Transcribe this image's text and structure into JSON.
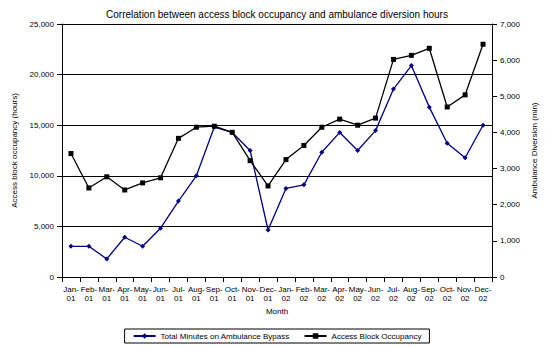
{
  "chart_data": {
    "type": "line",
    "title": "Correlation between access block occupancy and ambulance diversion hours",
    "x_label": "Month",
    "y_label": "Access block occupancy (hours)",
    "y2_label": "Ambulance Diversion (min)",
    "categories": [
      "Jan-01",
      "Feb-01",
      "Mar-01",
      "Apr-01",
      "May-01",
      "Jun-01",
      "Jul-01",
      "Aug-01",
      "Sep-01",
      "Oct-01",
      "Nov-01",
      "Dec-01",
      "Jan-02",
      "Feb-02",
      "Mar-02",
      "Apr-02",
      "May-02",
      "Jun-02",
      "Jul-02",
      "Aug-02",
      "Sep-02",
      "Oct-02",
      "Nov-02",
      "Dec-02"
    ],
    "series": [
      {
        "name": "Total Minutes on Ambulance Bypass",
        "color": "#000080",
        "marker": "diamond",
        "line_style": "solid",
        "axis": "y2",
        "values": [
          850,
          850,
          500,
          1100,
          850,
          1350,
          2100,
          2800,
          4150,
          4000,
          3500,
          1300,
          2450,
          2550,
          3450,
          4000,
          3500,
          4050,
          5200,
          5850,
          4700,
          3700,
          3300,
          4200
        ]
      },
      {
        "name": "Access Block Occupancy",
        "color": "#000000",
        "marker": "square",
        "line_style": "solid",
        "values": [
          12200,
          8800,
          9900,
          8600,
          9300,
          9800,
          13700,
          14800,
          14900,
          14300,
          11500,
          9000,
          11600,
          13000,
          14800,
          15600,
          15000,
          15700,
          21500,
          21900,
          22600,
          16800,
          18000,
          23000
        ]
      }
    ],
    "ylim": [
      0,
      25000
    ],
    "yticks": [
      0,
      5000,
      10000,
      15000,
      20000,
      25000
    ],
    "y2lim": [
      0,
      7000
    ],
    "y2ticks": [
      0,
      1000,
      2000,
      3000,
      4000,
      5000,
      6000,
      7000
    ],
    "grid": true,
    "legend": "bottom"
  }
}
